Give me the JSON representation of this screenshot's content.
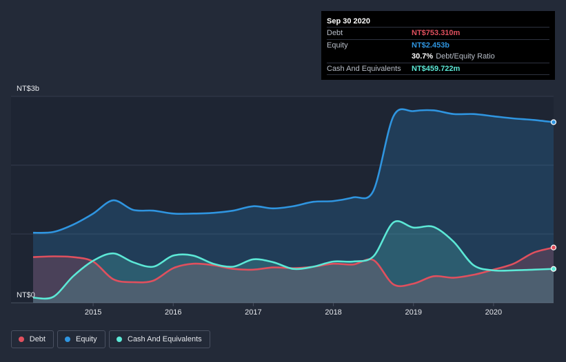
{
  "tooltip": {
    "date": "Sep 30 2020",
    "debt_label": "Debt",
    "debt_value": "NT$753.310m",
    "equity_label": "Equity",
    "equity_value": "NT$2.453b",
    "ratio_value": "30.7%",
    "ratio_label": "Debt/Equity Ratio",
    "cash_label": "Cash And Equivalents",
    "cash_value": "NT$459.722m"
  },
  "legend": {
    "debt": "Debt",
    "equity": "Equity",
    "cash": "Cash And Equivalents"
  },
  "colors": {
    "debt": "#e0505e",
    "equity": "#2f95e0",
    "cash": "#5ce8d6"
  },
  "chart_data": {
    "type": "area",
    "y_unit": "NT$ billions",
    "ylim": [
      0,
      2.8
    ],
    "ytick_labels": [
      {
        "value": 2.8,
        "label": "NT$3b"
      },
      {
        "value": 0,
        "label": "NT$0"
      }
    ],
    "xlim": [
      2014.25,
      2020.75
    ],
    "xtick_labels": [
      "2015",
      "2016",
      "2017",
      "2018",
      "2019",
      "2020"
    ],
    "xtick_values": [
      2015,
      2016,
      2017,
      2018,
      2019,
      2020
    ],
    "legend_position": "bottom-left",
    "grid": true,
    "series": [
      {
        "name": "Debt",
        "key": "debt",
        "x": [
          2014.25,
          2014.5,
          2014.75,
          2015.0,
          2015.25,
          2015.5,
          2015.75,
          2016.0,
          2016.25,
          2016.5,
          2016.75,
          2017.0,
          2017.25,
          2017.5,
          2017.75,
          2018.0,
          2018.25,
          2018.5,
          2018.75,
          2019.0,
          2019.25,
          2019.5,
          2019.75,
          2020.0,
          2020.25,
          2020.5,
          2020.75
        ],
        "values": [
          0.62,
          0.63,
          0.62,
          0.56,
          0.32,
          0.28,
          0.3,
          0.47,
          0.53,
          0.51,
          0.46,
          0.45,
          0.48,
          0.47,
          0.49,
          0.53,
          0.52,
          0.58,
          0.25,
          0.26,
          0.36,
          0.34,
          0.38,
          0.45,
          0.53,
          0.68,
          0.75
        ]
      },
      {
        "name": "Equity",
        "key": "equity",
        "x": [
          2014.25,
          2014.5,
          2014.75,
          2015.0,
          2015.25,
          2015.5,
          2015.75,
          2016.0,
          2016.25,
          2016.5,
          2016.75,
          2017.0,
          2017.25,
          2017.5,
          2017.75,
          2018.0,
          2018.25,
          2018.5,
          2018.75,
          2019.0,
          2019.25,
          2019.5,
          2019.75,
          2020.0,
          2020.25,
          2020.5,
          2020.75
        ],
        "values": [
          0.95,
          0.96,
          1.06,
          1.21,
          1.39,
          1.26,
          1.25,
          1.21,
          1.21,
          1.22,
          1.25,
          1.31,
          1.28,
          1.31,
          1.37,
          1.38,
          1.43,
          1.52,
          2.53,
          2.6,
          2.61,
          2.56,
          2.56,
          2.53,
          2.5,
          2.48,
          2.45
        ]
      },
      {
        "name": "Cash And Equivalents",
        "key": "cash",
        "x": [
          2014.25,
          2014.5,
          2014.75,
          2015.0,
          2015.25,
          2015.5,
          2015.75,
          2016.0,
          2016.25,
          2016.5,
          2016.75,
          2017.0,
          2017.25,
          2017.5,
          2017.75,
          2018.0,
          2018.25,
          2018.5,
          2018.75,
          2019.0,
          2019.25,
          2019.5,
          2019.75,
          2020.0,
          2020.25,
          2020.5,
          2020.75
        ],
        "values": [
          0.07,
          0.08,
          0.36,
          0.57,
          0.67,
          0.55,
          0.49,
          0.64,
          0.64,
          0.53,
          0.49,
          0.59,
          0.55,
          0.46,
          0.49,
          0.56,
          0.56,
          0.63,
          1.09,
          1.02,
          1.03,
          0.83,
          0.51,
          0.44,
          0.44,
          0.45,
          0.46
        ]
      }
    ]
  }
}
